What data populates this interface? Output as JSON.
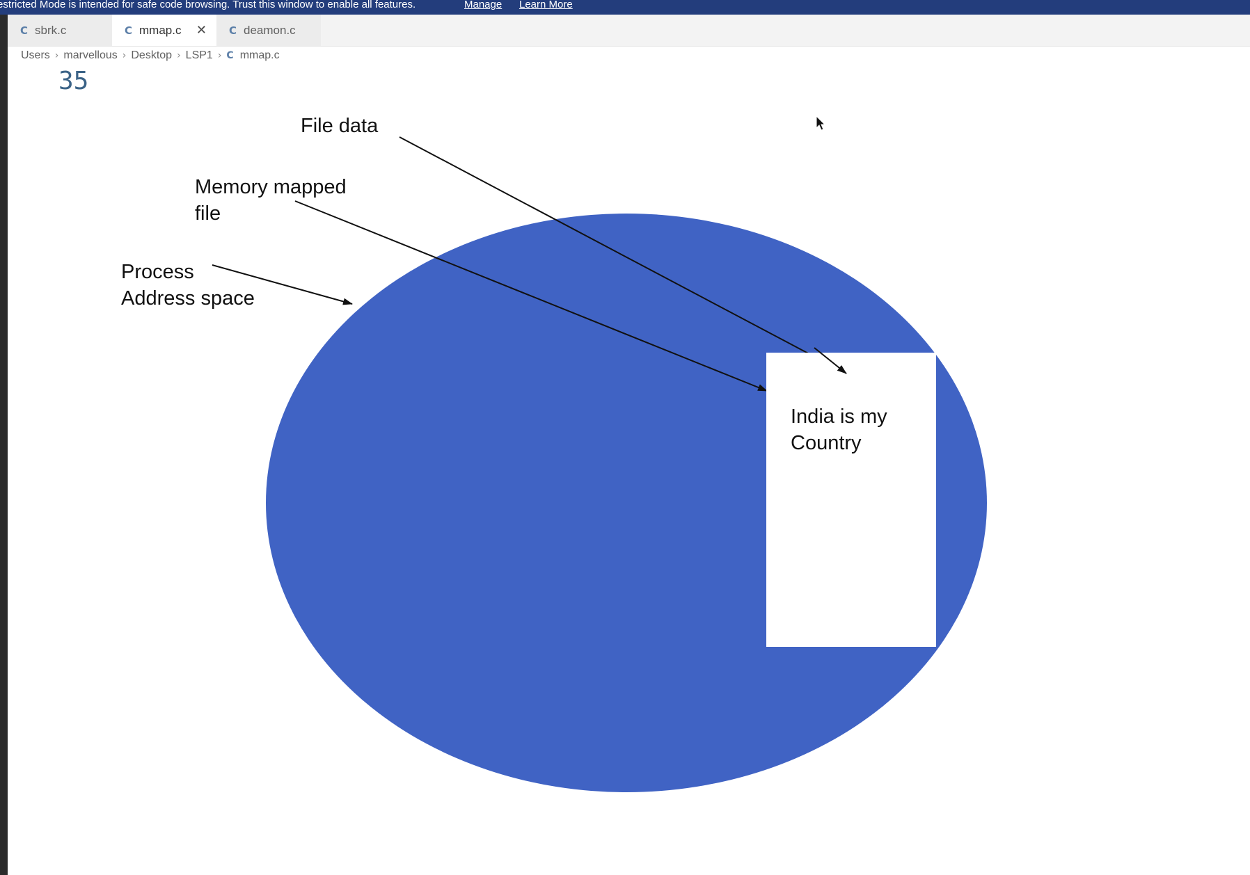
{
  "banner": {
    "message": "estricted Mode is intended for safe code browsing. Trust this window to enable all features.",
    "manage_link": "Manage",
    "learn_more_link": "Learn More"
  },
  "tabs": [
    {
      "icon": "c-file-icon",
      "icon_glyph": "C",
      "label": "sbrk.c",
      "active": false
    },
    {
      "icon": "c-file-icon",
      "icon_glyph": "C",
      "label": "mmap.c",
      "active": true,
      "close_glyph": "✕"
    },
    {
      "icon": "c-file-icon",
      "icon_glyph": "C",
      "label": "deamon.c",
      "active": false
    }
  ],
  "breadcrumb": {
    "items": [
      "Users",
      "marvellous",
      "Desktop",
      "LSP1"
    ],
    "separator": "›",
    "file_icon_glyph": "C",
    "file": "mmap.c"
  },
  "editor": {
    "line_number": "35"
  },
  "diagram": {
    "labels": {
      "file_data": "File data",
      "memory_mapped_line1": "Memory mapped",
      "memory_mapped_line2": "file",
      "process_line1": "Process",
      "process_line2": "Address space"
    },
    "file_content": "India is my Country",
    "colors": {
      "address_space": "#4063c4",
      "mapped_region": "#ffffff",
      "arrows": "#111111"
    }
  }
}
